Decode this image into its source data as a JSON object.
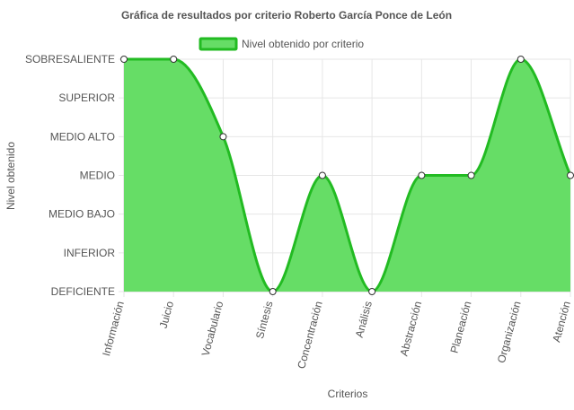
{
  "chart_data": {
    "type": "area",
    "title": "Gráfica de resultados por criterio Roberto García Ponce de León",
    "xlabel": "Criterios",
    "ylabel": "Nivel obtenido",
    "y_levels": [
      "DEFICIENTE",
      "INFERIOR",
      "MEDIO BAJO",
      "MEDIO",
      "MEDIO ALTO",
      "SUPERIOR",
      "SOBRESALIENTE"
    ],
    "categories": [
      "Información",
      "Juicio",
      "Vocabulario",
      "Síntesis",
      "Concentración",
      "Análisis",
      "Abstracción",
      "Planeación",
      "Organización",
      "Atención"
    ],
    "series": [
      {
        "name": "Nivel obtenido por criterio",
        "values": [
          "SOBRESALIENTE",
          "SOBRESALIENTE",
          "MEDIO ALTO",
          "DEFICIENTE",
          "MEDIO",
          "DEFICIENTE",
          "MEDIO",
          "MEDIO",
          "SOBRESALIENTE",
          "MEDIO"
        ],
        "fill_color": "#66dd66",
        "line_color": "#22bb22"
      }
    ],
    "ylim": [
      "DEFICIENTE",
      "SOBRESALIENTE"
    ],
    "grid": true,
    "legend_position": "top"
  }
}
